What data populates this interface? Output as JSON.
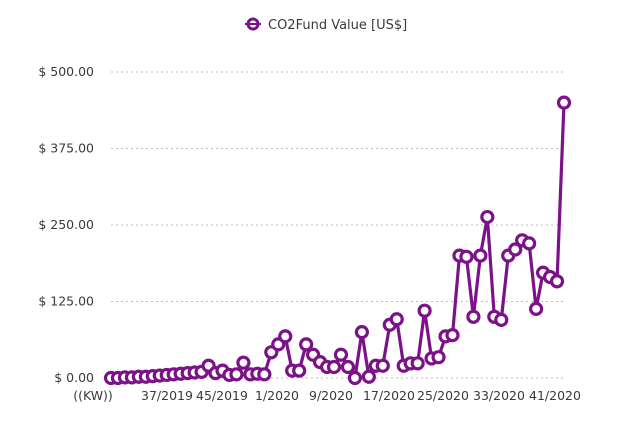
{
  "chart_data": {
    "type": "line",
    "title": "",
    "xlabel": "",
    "ylabel": "",
    "ylim": [
      0,
      500
    ],
    "yticks": [
      0,
      125,
      250,
      375,
      500
    ],
    "ytick_labels": [
      "$ 0.00",
      "$ 125.00",
      "$ 250.00",
      "$ 375.00",
      "$ 500.00"
    ],
    "xtick_labels": [
      "((KW))",
      "37/2019",
      "45/2019",
      "1/2020",
      "9/2020",
      "17/2020",
      "25/2020",
      "33/2020",
      "41/2020"
    ],
    "grid": true,
    "legend_position": "top-center",
    "series": [
      {
        "name": "CO2Fund Value [US$]",
        "color": "#7b1288",
        "values": [
          0,
          0,
          1,
          1,
          2,
          2,
          3,
          4,
          5,
          6,
          7,
          8,
          9,
          10,
          20,
          8,
          12,
          5,
          6,
          25,
          6,
          7,
          6,
          42,
          55,
          68,
          12,
          12,
          55,
          38,
          26,
          18,
          18,
          38,
          18,
          0,
          75,
          2,
          20,
          20,
          87,
          96,
          20,
          24,
          24,
          110,
          32,
          34,
          68,
          70,
          200,
          198,
          100,
          200,
          263,
          100,
          95,
          200,
          210,
          225,
          220,
          113,
          172,
          165,
          158,
          450
        ]
      }
    ]
  }
}
